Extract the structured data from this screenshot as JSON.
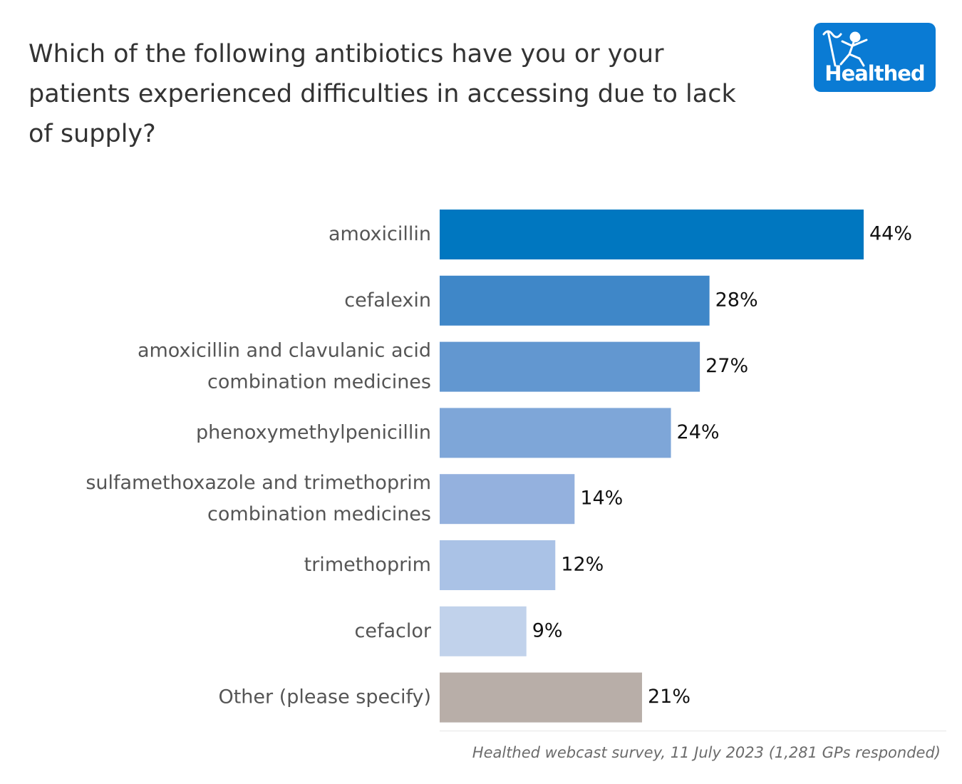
{
  "title": "Which of the following antibiotics have you or your patients experienced difficulties in accessing due to lack of supply?",
  "logo": {
    "text": "Healthed",
    "icon": "hermes-running-figure-icon",
    "background": "#0a7bd4"
  },
  "caption": "Healthed webcast survey, 11 July 2023 (1,281 GPs responded)",
  "chart_data": {
    "type": "bar",
    "orientation": "horizontal",
    "categories": [
      [
        "amoxicillin"
      ],
      [
        "cefalexin"
      ],
      [
        "amoxicillin and clavulanic acid",
        "combination medicines"
      ],
      [
        "phenoxymethylpenicillin"
      ],
      [
        "sulfamethoxazole and trimethoprim",
        "combination medicines"
      ],
      [
        "trimethoprim"
      ],
      [
        "cefaclor"
      ],
      [
        "Other (please specify)"
      ]
    ],
    "values": [
      44,
      28,
      27,
      24,
      14,
      12,
      9,
      21
    ],
    "value_labels": [
      "44%",
      "28%",
      "27%",
      "24%",
      "14%",
      "12%",
      "9%",
      "21%"
    ],
    "colors": [
      "#0077c0",
      "#3f87c8",
      "#6297d0",
      "#7ea6d8",
      "#94b1de",
      "#aac2e6",
      "#c1d2eb",
      "#b8aea8"
    ],
    "xlim": [
      0,
      44
    ],
    "grid": false,
    "legend": "none"
  }
}
